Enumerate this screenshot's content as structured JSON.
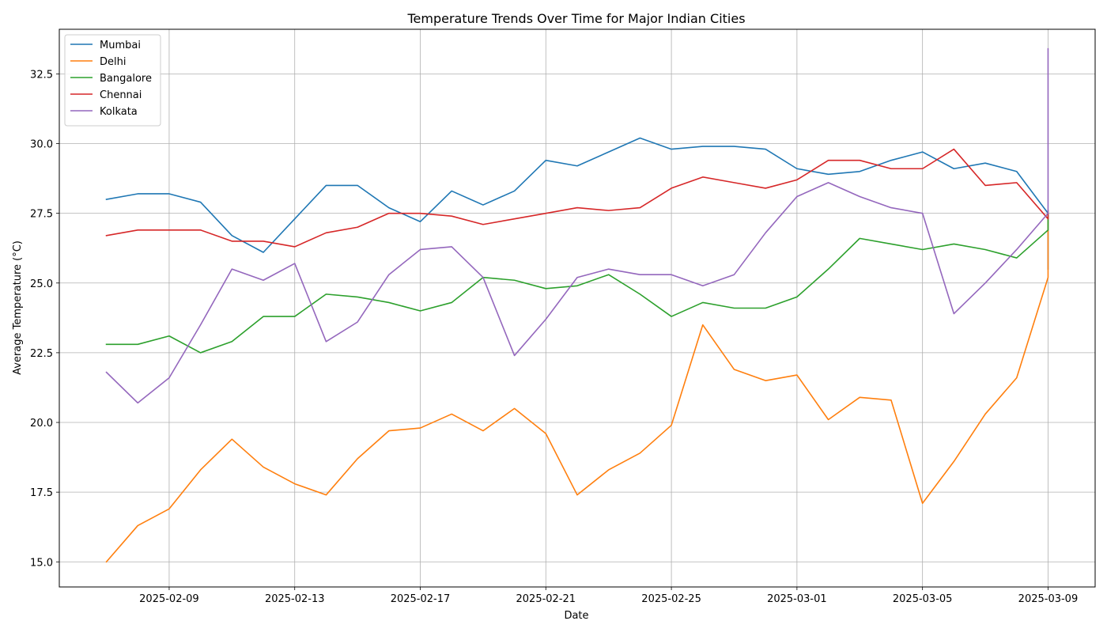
{
  "chart_data": {
    "type": "line",
    "title": "Temperature Trends Over Time for Major Indian Cities",
    "xlabel": "Date",
    "ylabel": "Average Temperature (°C)",
    "x": [
      "2025-02-07",
      "2025-02-08",
      "2025-02-09",
      "2025-02-10",
      "2025-02-11",
      "2025-02-12",
      "2025-02-13",
      "2025-02-14",
      "2025-02-15",
      "2025-02-16",
      "2025-02-17",
      "2025-02-18",
      "2025-02-19",
      "2025-02-20",
      "2025-02-21",
      "2025-02-22",
      "2025-02-23",
      "2025-02-24",
      "2025-02-25",
      "2025-02-26",
      "2025-02-27",
      "2025-02-28",
      "2025-03-01",
      "2025-03-02",
      "2025-03-03",
      "2025-03-04",
      "2025-03-05",
      "2025-03-06",
      "2025-03-07",
      "2025-03-08",
      "2025-03-09"
    ],
    "xticks": [
      "2025-02-09",
      "2025-02-13",
      "2025-02-17",
      "2025-02-21",
      "2025-02-25",
      "2025-03-01",
      "2025-03-05",
      "2025-03-09"
    ],
    "xlim": [
      "2025-02-05 12:00",
      "2025-03-10 12:00"
    ],
    "ylim": [
      14.1,
      34.1
    ],
    "yticks": [
      15.0,
      17.5,
      20.0,
      22.5,
      25.0,
      27.5,
      30.0,
      32.5
    ],
    "grid": true,
    "legend_position": "upper left",
    "series": [
      {
        "name": "Mumbai",
        "color": "#1f77b4",
        "values": [
          28.0,
          28.2,
          28.2,
          27.9,
          26.7,
          26.1,
          27.3,
          28.5,
          28.5,
          27.7,
          27.2,
          28.3,
          27.8,
          28.3,
          29.4,
          29.2,
          29.7,
          30.2,
          29.8,
          29.9,
          29.9,
          29.8,
          29.1,
          28.9,
          29.0,
          29.4,
          29.7,
          29.1,
          29.3,
          29.0,
          27.5
        ],
        "final_spike": [
          27.5,
          25.5
        ]
      },
      {
        "name": "Delhi",
        "color": "#ff7f0e",
        "values": [
          15.0,
          16.3,
          16.9,
          18.3,
          19.4,
          18.4,
          17.8,
          17.4,
          18.7,
          19.7,
          19.8,
          20.3,
          19.7,
          20.5,
          19.6,
          17.4,
          18.3,
          18.9,
          19.9,
          23.5,
          21.9,
          21.5,
          21.7,
          20.1,
          20.9,
          20.8,
          17.1,
          18.6,
          20.3,
          21.6,
          25.2
        ],
        "final_spike": [
          25.2,
          27.3
        ]
      },
      {
        "name": "Bangalore",
        "color": "#2ca02c",
        "values": [
          22.8,
          22.8,
          23.1,
          22.5,
          22.9,
          23.8,
          23.8,
          24.6,
          24.5,
          24.3,
          24.0,
          24.3,
          25.2,
          25.1,
          24.8,
          24.9,
          25.3,
          24.6,
          23.8,
          24.3,
          24.1,
          24.1,
          24.5,
          25.5,
          26.6,
          26.4,
          26.2,
          26.4,
          26.2,
          25.9,
          26.9
        ],
        "final_spike": [
          26.9,
          27.5
        ]
      },
      {
        "name": "Chennai",
        "color": "#d62728",
        "values": [
          26.7,
          26.9,
          26.9,
          26.9,
          26.5,
          26.5,
          26.3,
          26.8,
          27.0,
          27.5,
          27.5,
          27.4,
          27.1,
          27.3,
          27.5,
          27.7,
          27.6,
          27.7,
          28.4,
          28.8,
          28.6,
          28.4,
          28.7,
          29.4,
          29.4,
          29.1,
          29.1,
          29.8,
          28.5,
          28.6,
          27.3
        ],
        "final_spike": [
          27.3,
          27.6
        ]
      },
      {
        "name": "Kolkata",
        "color": "#9467bd",
        "values": [
          21.8,
          20.7,
          21.6,
          23.5,
          25.5,
          25.1,
          25.7,
          22.9,
          23.6,
          25.3,
          26.2,
          26.3,
          25.2,
          22.4,
          23.7,
          25.2,
          25.5,
          25.3,
          25.3,
          24.9,
          25.3,
          26.8,
          28.1,
          28.6,
          28.1,
          27.7,
          27.5,
          23.9,
          25.0,
          26.2,
          27.5
        ],
        "final_spike": [
          27.5,
          33.4
        ]
      }
    ]
  }
}
